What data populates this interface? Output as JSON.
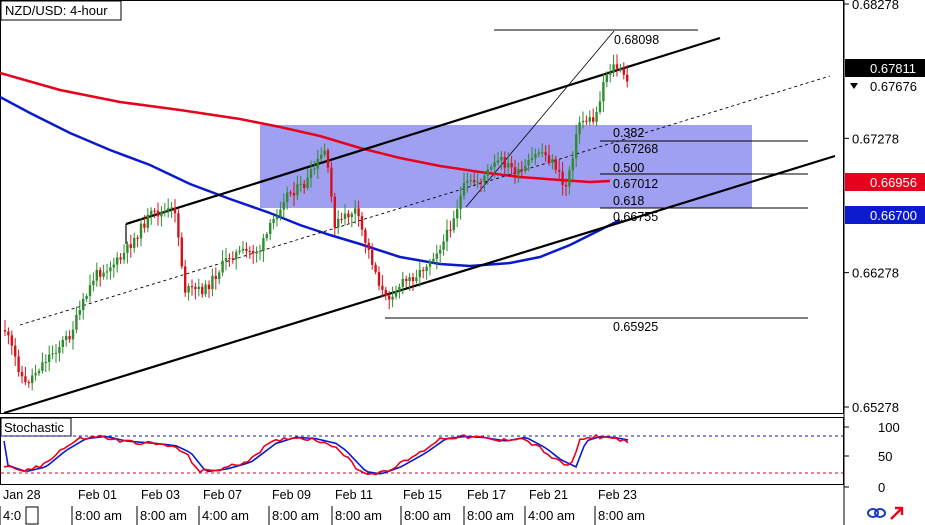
{
  "chart_data": {
    "type": "candlestick",
    "title": "NZD/USD: 4-hour",
    "price_axis": {
      "ylim": [
        0.6508,
        0.6835
      ],
      "ticks": [
        "0.68278",
        "0.67278",
        "0.66278",
        "0.65278"
      ],
      "labels": [
        {
          "text": "0.67811",
          "value": 0.67811,
          "bg": "#000000",
          "fg": "#ffffff"
        },
        {
          "text": "0.67676",
          "value": 0.67676,
          "bg": "#ffffff",
          "fg": "#000000"
        },
        {
          "text": "0.66956",
          "value": 0.66956,
          "bg": "#e8001c",
          "fg": "#ffffff"
        },
        {
          "text": "0.66700",
          "value": 0.667,
          "bg": "#0a1acc",
          "fg": "#ffffff"
        }
      ]
    },
    "x_labels": {
      "dates": [
        "Jan 28",
        "Feb 01",
        "Feb 03",
        "Feb 07",
        "Feb 09",
        "Feb 11",
        "Feb 15",
        "Feb 17",
        "Feb 21",
        "Feb 23"
      ],
      "times": [
        "4:0",
        "8:00 am",
        "8:00 am",
        "4:00 am",
        "8:00 am",
        "8:00 am",
        "8:00 am",
        "8:00 am",
        "4:00 am",
        "8:00 am"
      ]
    },
    "fibonacci": {
      "high": "0.68098",
      "low": "0.65925",
      "levels": [
        {
          "ratio": "0.382",
          "price": "0.67268",
          "value": 0.67268
        },
        {
          "ratio": "0.500",
          "price": "0.67012",
          "value": 0.67012
        },
        {
          "ratio": "0.618",
          "price": "0.66755",
          "value": 0.66755
        }
      ]
    },
    "moving_averages": [
      {
        "color": "#e8001c",
        "current": 0.66956
      },
      {
        "color": "#0a1acc",
        "current": 0.667
      }
    ],
    "channel_color": "#000000",
    "zone_color": "#8f8ff0",
    "candle_up": "#2e8b2e",
    "candle_down": "#d8101a",
    "stochastic": {
      "label": "Stochastic",
      "ticks": [
        "100",
        "50",
        "0"
      ],
      "upper_level": 80,
      "lower_level": 20,
      "k_color": "#e8001c",
      "d_color": "#0a1acc"
    }
  }
}
